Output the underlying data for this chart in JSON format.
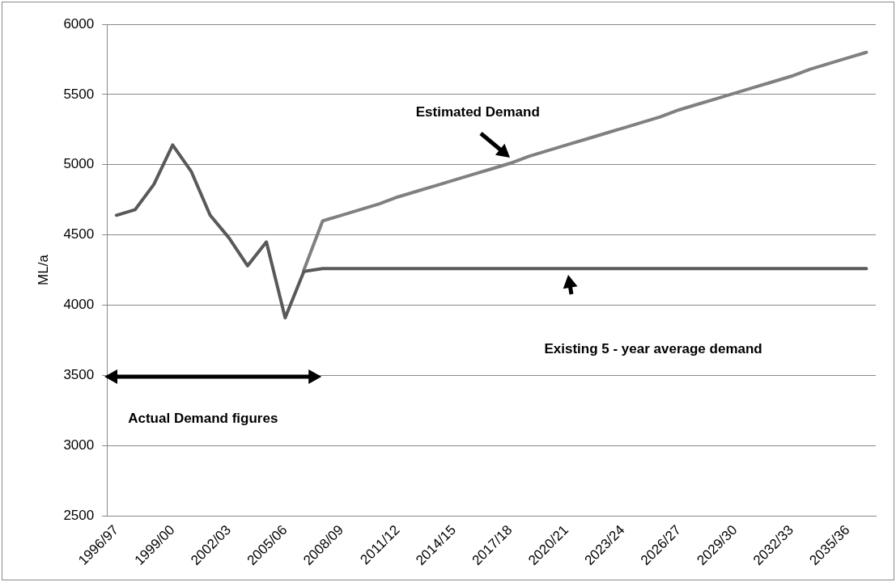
{
  "chart_data": {
    "type": "line",
    "ylabel": "ML/a",
    "categories": [
      "1996/97",
      null,
      null,
      "1999/00",
      null,
      null,
      "2002/03",
      null,
      null,
      "2005/06",
      null,
      null,
      "2008/09",
      null,
      null,
      "2011/12",
      null,
      null,
      "2014/15",
      null,
      null,
      "2017/18",
      null,
      null,
      "2020/21",
      null,
      null,
      "2023/24",
      null,
      null,
      "2026/27",
      null,
      null,
      "2029/30",
      null,
      null,
      "2032/33",
      null,
      null,
      "2035/36",
      null
    ],
    "series": [
      {
        "color": "#595959",
        "values": [
          4640,
          4680,
          4860,
          5140,
          4950,
          4640,
          4480,
          4280,
          4450,
          3910,
          4240,
          null,
          null,
          null,
          null,
          null,
          null,
          null,
          null,
          null,
          null,
          null,
          null,
          null,
          null,
          null,
          null,
          null,
          null,
          null,
          null,
          null,
          null,
          null,
          null,
          null,
          null,
          null,
          null,
          null,
          null
        ]
      },
      {
        "color": "#808080",
        "values": [
          null,
          null,
          null,
          null,
          null,
          null,
          null,
          null,
          null,
          null,
          4250,
          4600,
          4640,
          4680,
          4720,
          4770,
          4810,
          4850,
          4890,
          4930,
          4970,
          5010,
          5060,
          5100,
          5140,
          5180,
          5220,
          5260,
          5300,
          5340,
          5390,
          5430,
          5470,
          5510,
          5550,
          5590,
          5630,
          5680,
          5720,
          5760,
          5800
        ]
      },
      {
        "color": "#595959",
        "values": [
          null,
          null,
          null,
          null,
          null,
          null,
          null,
          null,
          null,
          null,
          4240,
          4260,
          4260,
          4260,
          4260,
          4260,
          4260,
          4260,
          4260,
          4260,
          4260,
          4260,
          4260,
          4260,
          4260,
          4260,
          4260,
          4260,
          4260,
          4260,
          4260,
          4260,
          4260,
          4260,
          4260,
          4260,
          4260,
          4260,
          4260,
          4260,
          4260
        ]
      }
    ],
    "ylim": [
      2500,
      6000
    ],
    "yticks": [
      2500,
      3000,
      3500,
      4000,
      4500,
      5000,
      5500,
      6000
    ],
    "grid": "y",
    "legend": false,
    "annotations": [
      {
        "text": "Estimated Demand",
        "x": "2017/18",
        "y": 5040
      },
      "Existing 5 - year average demand",
      "Actual Demand figures"
    ]
  }
}
